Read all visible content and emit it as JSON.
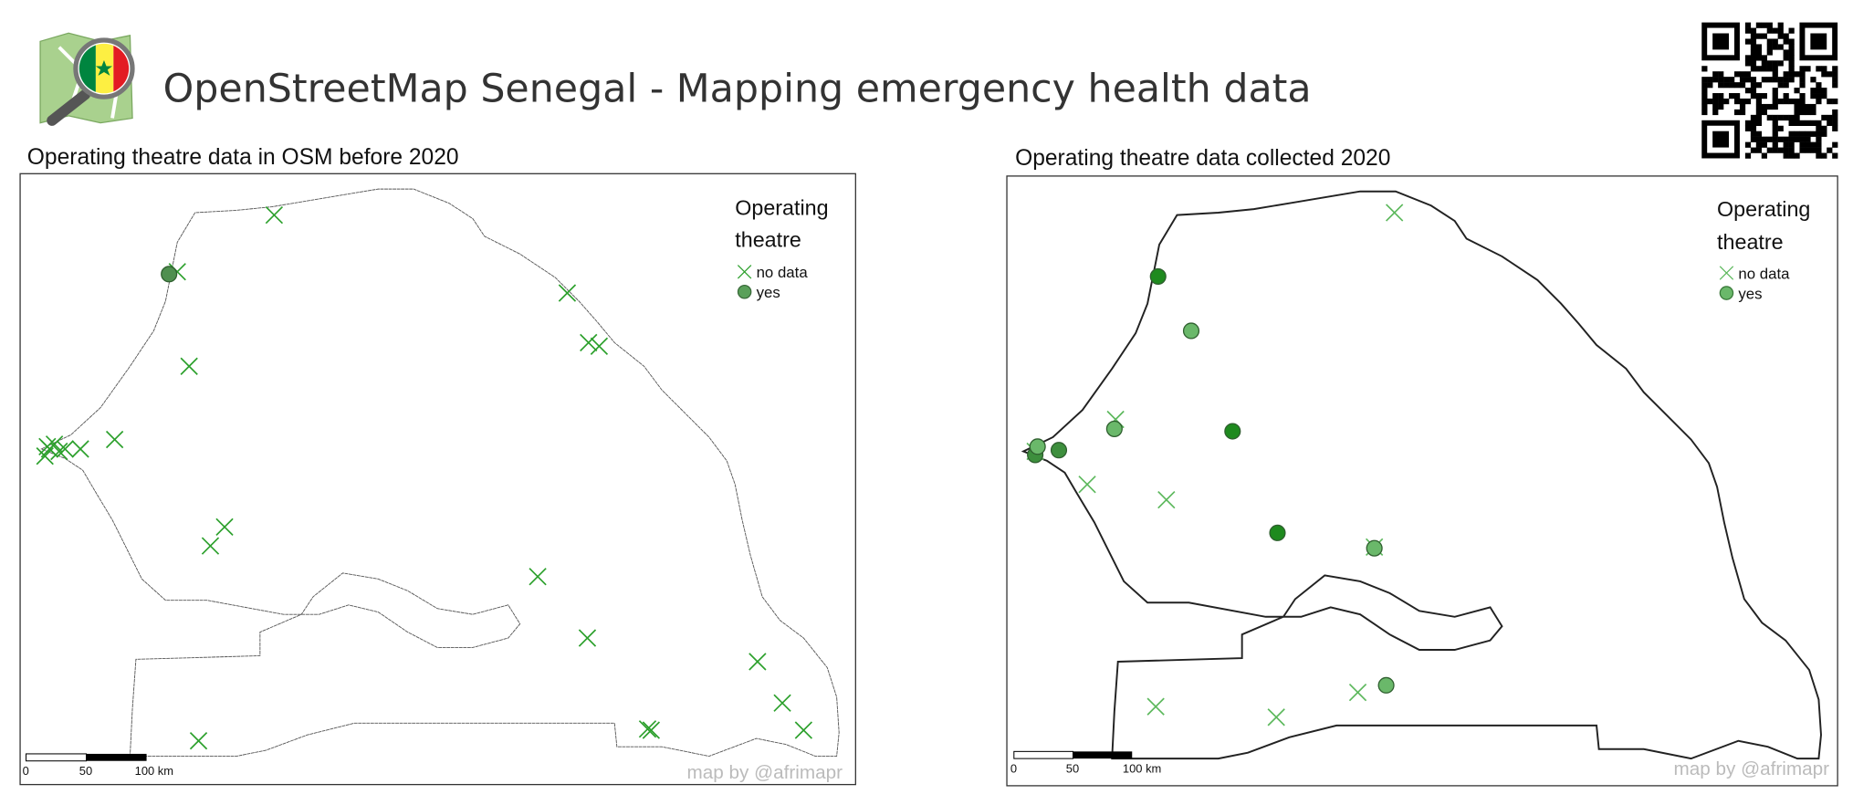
{
  "header": {
    "title": "OpenStreetMap Senegal - Mapping emergency health data"
  },
  "panels": [
    {
      "title": "Operating theatre data in OSM before 2020",
      "legend": {
        "title_lines": [
          "Operating",
          "theatre"
        ],
        "items": [
          "no data",
          "yes"
        ]
      },
      "scale": [
        "0",
        "50",
        "100 km"
      ],
      "credit": "map by @afrimapr"
    },
    {
      "title": "Operating theatre data collected 2020",
      "legend": {
        "title_lines": [
          "Operating",
          "theatre"
        ],
        "items": [
          "no data",
          "yes"
        ]
      },
      "scale": [
        "0",
        "50",
        "100 km"
      ],
      "credit": "map by @afrimapr"
    }
  ]
}
